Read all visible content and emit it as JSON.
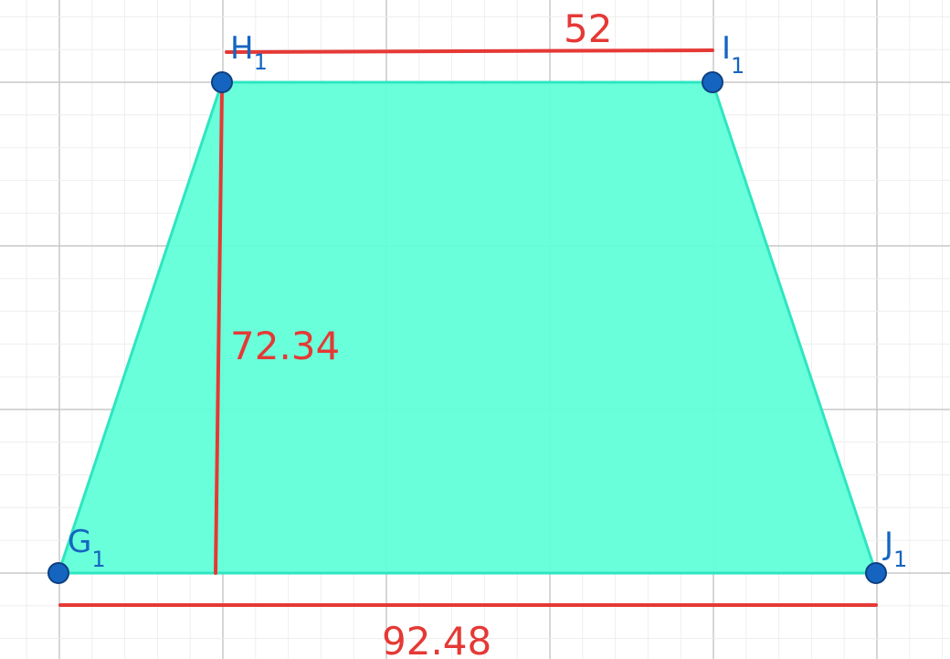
{
  "points": {
    "G": {
      "letter": "G",
      "sub": "1"
    },
    "H": {
      "letter": "H",
      "sub": "1"
    },
    "I": {
      "letter": "I",
      "sub": "1"
    },
    "J": {
      "letter": "J",
      "sub": "1"
    }
  },
  "measurements": {
    "top": "52",
    "height": "72.34",
    "bottom": "92.48"
  },
  "colors": {
    "fill": "#61ffd9",
    "edge": "#2ee6c0",
    "point": "#1565c0",
    "measure": "#e53935",
    "grid_major": "#c8c8c8",
    "grid_minor": "#eeeeee"
  }
}
